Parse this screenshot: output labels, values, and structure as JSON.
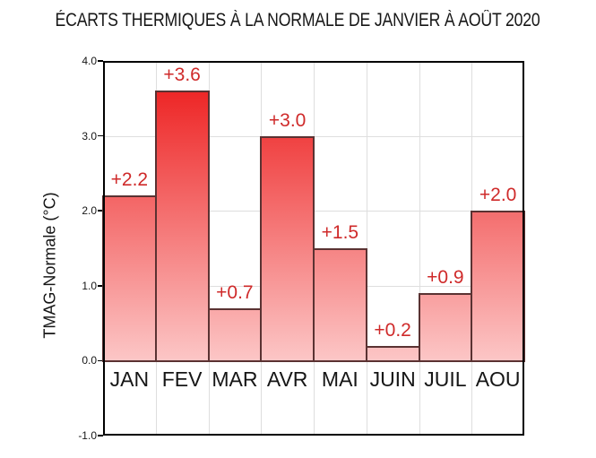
{
  "title": "ÉCARTS THERMIQUES À LA NORMALE DE JANVIER À AOÛT 2020",
  "chart_data": {
    "type": "bar",
    "title": "ÉCARTS THERMIQUES À LA NORMALE DE JANVIER À AOÛT 2020",
    "xlabel": "",
    "ylabel": "TMAG-Normale (°C)",
    "categories": [
      "JAN",
      "FEV",
      "MAR",
      "AVR",
      "MAI",
      "JUIN",
      "JUIL",
      "AOU"
    ],
    "values": [
      2.2,
      3.6,
      0.7,
      3.0,
      1.5,
      0.2,
      0.9,
      2.0
    ],
    "data_labels": [
      "+2.2",
      "+3.6",
      "+0.7",
      "+3.0",
      "+1.5",
      "+0.2",
      "+0.9",
      "+2.0"
    ],
    "ylim": [
      -1.0,
      4.0
    ],
    "yticks": [
      "4.0",
      "3.0",
      "2.0",
      "1.0",
      "0.0",
      "-1.0"
    ],
    "grid_values": [
      3.0,
      2.0,
      1.0
    ],
    "grid": true,
    "legend_position": "none",
    "colors": {
      "bar_gradient_top": "#ec1414",
      "bar_gradient_bottom": "#fcc6c6",
      "bar_border": "#5a3232",
      "value_label": "#cf2a2a",
      "gridline": "#dedede",
      "zero_line": "#463030",
      "axis_border": "#000000",
      "text": "#161616"
    }
  }
}
